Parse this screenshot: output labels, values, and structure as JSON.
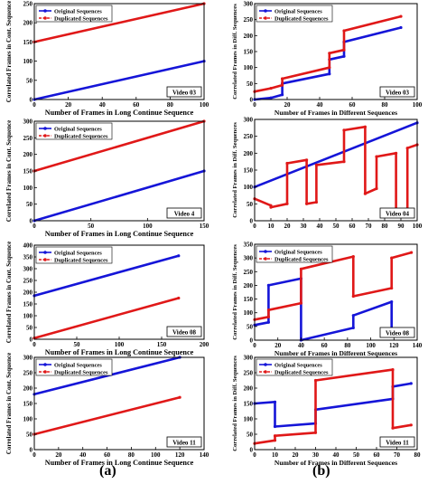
{
  "captions": {
    "a": "(a)",
    "b": "(b)"
  },
  "colors": {
    "original": "#1515d8",
    "duplicated": "#e01818"
  },
  "legend": {
    "original": "Original Sequences",
    "duplicated": "Duplicated Sequences"
  },
  "chart_data": [
    {
      "type": "line",
      "panel": "(a)",
      "row": 1,
      "video": "Video 03",
      "xlabel": "Number of Frames in Long Continue Sequence",
      "ylabel": "Correlated Frames in Cont. Sequence",
      "xlim": [
        0,
        100
      ],
      "ylim": [
        0,
        250
      ],
      "xticks": [
        0,
        20,
        40,
        60,
        80,
        100
      ],
      "yticks": [
        0,
        50,
        100,
        150,
        200,
        250
      ],
      "grid": false,
      "legend_position": "top-left",
      "series": [
        {
          "name": "Original Sequences",
          "x": [
            0,
            100
          ],
          "y": [
            0,
            100
          ]
        },
        {
          "name": "Duplicated Sequences",
          "x": [
            0,
            100
          ],
          "y": [
            150,
            250
          ]
        }
      ]
    },
    {
      "type": "line",
      "panel": "(b)",
      "row": 1,
      "video": "Video 03",
      "xlabel": "Number of Frames in Different Sequences",
      "ylabel": "Correlated Frames in Diff. Sequences",
      "xlim": [
        0,
        100
      ],
      "ylim": [
        0,
        300
      ],
      "xticks": [
        0,
        20,
        40,
        60,
        80,
        100
      ],
      "yticks": [
        0,
        50,
        100,
        150,
        200,
        250,
        300
      ],
      "grid": false,
      "legend_position": "top-left",
      "series": [
        {
          "name": "Original Sequences",
          "x": [
            0,
            10,
            17,
            17.01,
            46,
            46.01,
            55,
            55.01,
            90
          ],
          "y": [
            0,
            5,
            15,
            50,
            80,
            125,
            135,
            180,
            225
          ]
        },
        {
          "name": "Duplicated Sequences",
          "x": [
            0,
            10,
            17,
            17.01,
            46,
            46.01,
            55,
            55.01,
            90
          ],
          "y": [
            25,
            35,
            45,
            65,
            100,
            145,
            155,
            215,
            260
          ]
        }
      ]
    },
    {
      "type": "line",
      "panel": "(a)",
      "row": 2,
      "video": "Video 4",
      "xlabel": "Number of Frames in Long Continue Sequence",
      "ylabel": "Correlated Frames in Cont. Sequence",
      "xlim": [
        0,
        150
      ],
      "ylim": [
        0,
        300
      ],
      "xticks": [
        0,
        50,
        100,
        150
      ],
      "yticks": [
        0,
        50,
        100,
        150,
        200,
        250,
        300
      ],
      "grid": false,
      "legend_position": "top-left",
      "series": [
        {
          "name": "Original Sequences",
          "x": [
            0,
            150
          ],
          "y": [
            0,
            150
          ]
        },
        {
          "name": "Duplicated Sequences",
          "x": [
            0,
            150
          ],
          "y": [
            150,
            300
          ]
        }
      ]
    },
    {
      "type": "line",
      "panel": "(b)",
      "row": 2,
      "video": "Video 04",
      "xlabel": "",
      "ylabel": "Correlated Frames in Diff. Sequences",
      "xlim": [
        0,
        100
      ],
      "ylim": [
        0,
        300
      ],
      "xticks": [
        0,
        10,
        20,
        30,
        40,
        50,
        60,
        70,
        80,
        90,
        100
      ],
      "yticks": [
        0,
        50,
        100,
        150,
        200,
        250,
        300
      ],
      "grid": false,
      "legend_position": "none",
      "series": [
        {
          "name": "Original Sequences",
          "x": [
            0,
            100
          ],
          "y": [
            100,
            290
          ]
        },
        {
          "name": "Duplicated Sequences",
          "x": [
            0,
            10,
            10.01,
            20,
            20.01,
            32,
            32.01,
            38,
            38.01,
            55,
            55.01,
            68,
            68.01,
            75,
            75.01,
            87,
            87.01,
            94,
            94.01,
            100
          ],
          "y": [
            65,
            45,
            40,
            50,
            170,
            180,
            50,
            55,
            165,
            175,
            268,
            278,
            80,
            95,
            190,
            200,
            15,
            20,
            215,
            225
          ]
        }
      ]
    },
    {
      "type": "line",
      "panel": "(a)",
      "row": 3,
      "video": "Video 08",
      "xlabel": "Number of Frames in Long Continue Sequence",
      "ylabel": "Correlated Frames in Cont. Sequence",
      "xlim": [
        0,
        200
      ],
      "ylim": [
        0,
        400
      ],
      "xticks": [
        0,
        50,
        100,
        150,
        200
      ],
      "yticks": [
        0,
        50,
        100,
        150,
        200,
        250,
        300,
        350,
        400
      ],
      "grid": false,
      "legend_position": "top-left",
      "series": [
        {
          "name": "Original Sequences",
          "x": [
            0,
            170
          ],
          "y": [
            185,
            355
          ]
        },
        {
          "name": "Duplicated Sequences",
          "x": [
            0,
            170
          ],
          "y": [
            5,
            175
          ]
        }
      ]
    },
    {
      "type": "line",
      "panel": "(b)",
      "row": 3,
      "video": "Video 08",
      "xlabel": "Number of Frames in Different Sequences",
      "ylabel": "Correlated Frames in Diff. Sequences",
      "xlim": [
        0,
        140
      ],
      "ylim": [
        0,
        350
      ],
      "xticks": [
        0,
        20,
        40,
        60,
        80,
        100,
        120,
        140
      ],
      "yticks": [
        0,
        50,
        100,
        150,
        200,
        250,
        300,
        350
      ],
      "grid": false,
      "legend_position": "top-left",
      "series": [
        {
          "name": "Original Sequences",
          "x": [
            0,
            12,
            12.01,
            40,
            40.01,
            85,
            85.01,
            118,
            118.01,
            135
          ],
          "y": [
            55,
            65,
            200,
            225,
            0,
            45,
            90,
            140,
            20,
            35
          ]
        },
        {
          "name": "Duplicated Sequences",
          "x": [
            0,
            12,
            12.01,
            40,
            40.01,
            85,
            85.01,
            118,
            118.01,
            135
          ],
          "y": [
            75,
            85,
            110,
            135,
            260,
            305,
            160,
            190,
            300,
            320
          ]
        }
      ]
    },
    {
      "type": "line",
      "panel": "(a)",
      "row": 4,
      "video": "Video 11",
      "xlabel": "Number of Frames in Long Continue Sequence",
      "ylabel": "Correlated Frames in Cont. Sequence",
      "xlim": [
        0,
        140
      ],
      "ylim": [
        0,
        300
      ],
      "xticks": [
        0,
        20,
        40,
        60,
        80,
        100,
        120,
        140
      ],
      "yticks": [
        0,
        50,
        100,
        150,
        200,
        250,
        300
      ],
      "grid": false,
      "legend_position": "top-left",
      "series": [
        {
          "name": "Original Sequences",
          "x": [
            0,
            120
          ],
          "y": [
            180,
            300
          ]
        },
        {
          "name": "Duplicated Sequences",
          "x": [
            0,
            120
          ],
          "y": [
            50,
            170
          ]
        }
      ]
    },
    {
      "type": "line",
      "panel": "(b)",
      "row": 4,
      "video": "Video 11",
      "xlabel": "Number of Frames in Different Sequences",
      "ylabel": "Correlated Frames in Diff. Sequences",
      "xlim": [
        0,
        80
      ],
      "ylim": [
        0,
        300
      ],
      "xticks": [
        0,
        10,
        20,
        30,
        40,
        50,
        60,
        70,
        80
      ],
      "yticks": [
        0,
        50,
        100,
        150,
        200,
        250,
        300
      ],
      "grid": false,
      "legend_position": "top-left",
      "series": [
        {
          "name": "Original Sequences",
          "x": [
            0,
            10,
            10.01,
            30,
            30.01,
            68,
            68.01,
            77
          ],
          "y": [
            150,
            155,
            75,
            85,
            130,
            165,
            205,
            215
          ]
        },
        {
          "name": "Duplicated Sequences",
          "x": [
            0,
            10,
            10.01,
            30,
            30.01,
            68,
            68.01,
            77
          ],
          "y": [
            20,
            30,
            45,
            55,
            225,
            260,
            70,
            80
          ]
        }
      ]
    }
  ]
}
